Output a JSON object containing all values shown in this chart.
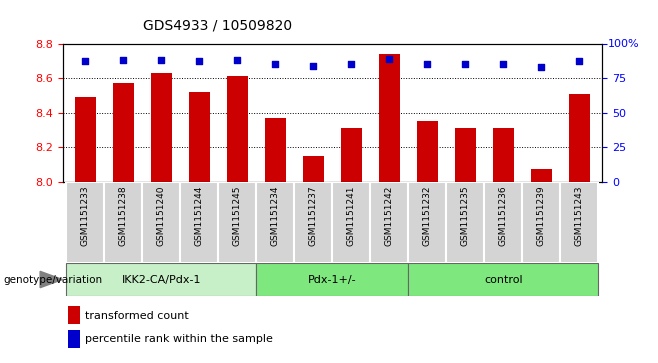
{
  "title": "GDS4933 / 10509820",
  "samples": [
    "GSM1151233",
    "GSM1151238",
    "GSM1151240",
    "GSM1151244",
    "GSM1151245",
    "GSM1151234",
    "GSM1151237",
    "GSM1151241",
    "GSM1151242",
    "GSM1151232",
    "GSM1151235",
    "GSM1151236",
    "GSM1151239",
    "GSM1151243"
  ],
  "red_values": [
    8.49,
    8.57,
    8.63,
    8.52,
    8.61,
    8.37,
    8.15,
    8.31,
    8.74,
    8.35,
    8.31,
    8.31,
    8.07,
    8.51
  ],
  "blue_values": [
    87,
    88,
    88,
    87,
    88,
    85,
    84,
    85,
    89,
    85,
    85,
    85,
    83,
    87
  ],
  "ymin": 8.0,
  "ymax": 8.8,
  "yright_min": 0,
  "yright_max": 100,
  "yticks_left": [
    8.0,
    8.2,
    8.4,
    8.6,
    8.8
  ],
  "yticks_right": [
    0,
    25,
    50,
    75,
    100
  ],
  "bar_color": "#cc0000",
  "dot_color": "#0000cc",
  "legend_red": "transformed count",
  "legend_blue": "percentile rank within the sample",
  "xlabel_left": "genotype/variation",
  "group_defs": [
    {
      "label": "IKK2-CA/Pdx-1",
      "start": 0,
      "end": 5,
      "color": "#c8f0c8"
    },
    {
      "label": "Pdx-1+/-",
      "start": 5,
      "end": 9,
      "color": "#7ee87e"
    },
    {
      "label": "control",
      "start": 9,
      "end": 14,
      "color": "#7ee87e"
    }
  ],
  "sample_box_color": "#d4d4d4",
  "sample_box_edge": "#aaaaaa"
}
